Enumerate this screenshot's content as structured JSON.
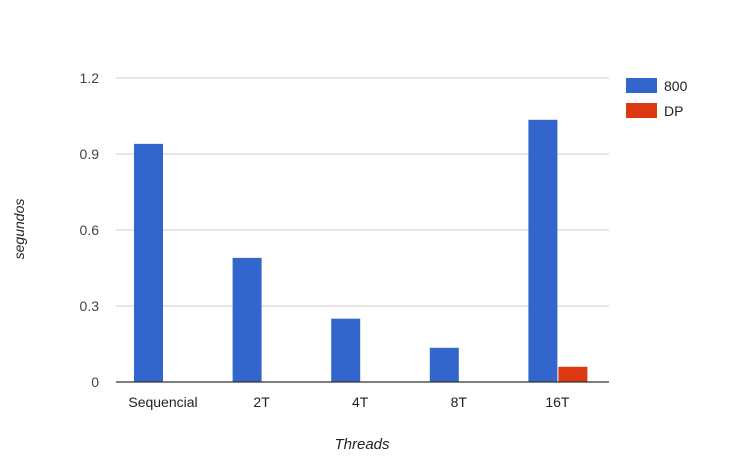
{
  "chart_data": {
    "type": "bar",
    "title": "",
    "xlabel": "Threads",
    "ylabel": "segundos",
    "categories": [
      "Sequencial",
      "2T",
      "4T",
      "8T",
      "16T"
    ],
    "series": [
      {
        "name": "800",
        "color": "#3366cc",
        "values": [
          0.94,
          0.49,
          0.25,
          0.135,
          1.035
        ]
      },
      {
        "name": "DP",
        "color": "#dc3912",
        "values": [
          0,
          0,
          0,
          0,
          0.06
        ]
      }
    ],
    "ylim": [
      0,
      1.2
    ],
    "yticks": [
      {
        "value": 0,
        "label": "0"
      },
      {
        "value": 0.3,
        "label": "0.3"
      },
      {
        "value": 0.6,
        "label": "0.6"
      },
      {
        "value": 0.9,
        "label": "0.9"
      },
      {
        "value": 1.2,
        "label": "1.2"
      }
    ],
    "grid": true,
    "legend_position": "right"
  }
}
